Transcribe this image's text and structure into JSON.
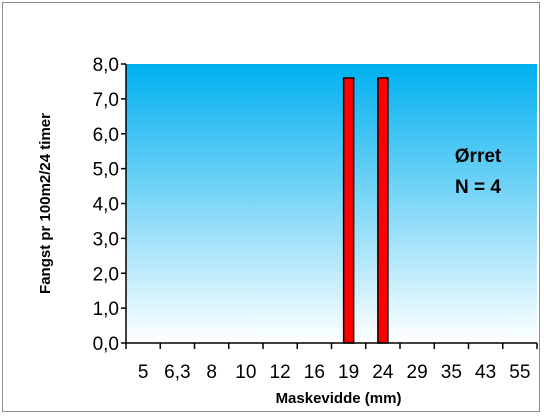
{
  "chart_data": {
    "type": "bar",
    "xlabel": "Maskevidde (mm)",
    "ylabel": "Fangst pr 100m2/24 timer",
    "categories": [
      "5",
      "6,3",
      "8",
      "10",
      "12",
      "16",
      "19",
      "24",
      "29",
      "35",
      "43",
      "55"
    ],
    "values": [
      0,
      0,
      0,
      0,
      0,
      0,
      7.6,
      7.6,
      0,
      0,
      0,
      0
    ],
    "ylim": [
      0,
      8
    ],
    "yticks": [
      "0,0",
      "1,0",
      "2,0",
      "3,0",
      "4,0",
      "5,0",
      "6,0",
      "7,0",
      "8,0"
    ],
    "grid": false,
    "annotations": [
      "Ørret",
      "N = 4"
    ],
    "colors": {
      "bar_fill": "#ff0000",
      "bar_stroke": "#000000",
      "plot_gradient_top": "#00b0f0",
      "plot_gradient_bottom": "#ffffff"
    }
  }
}
